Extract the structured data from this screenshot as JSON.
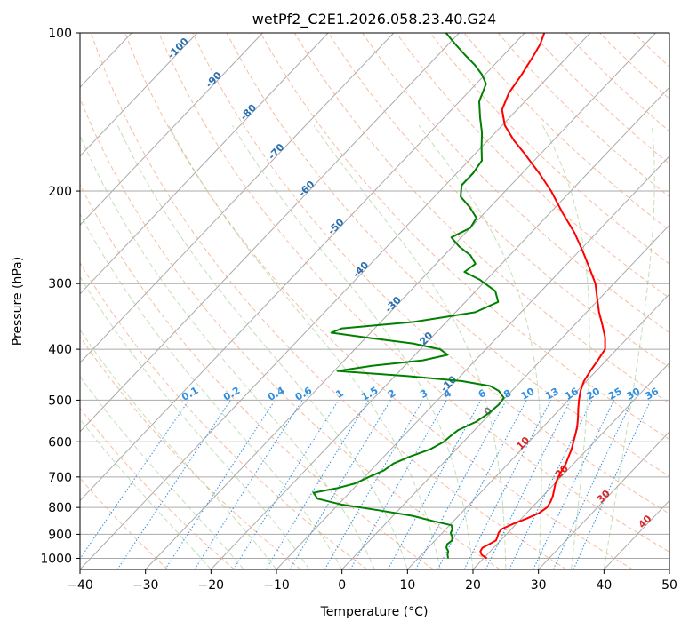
{
  "chart_data": {
    "type": "line",
    "subtype": "skew-T log-P diagram",
    "title": "wetPf2_C2E1.2026.058.23.40.G24",
    "xlabel": "Temperature (°C)",
    "ylabel": "Pressure (hPa)",
    "xlim": [
      -40,
      50
    ],
    "ylim": [
      1050,
      100
    ],
    "y_scale": "log",
    "x_ticks": [
      -40,
      -30,
      -20,
      -10,
      0,
      10,
      20,
      30,
      40,
      50
    ],
    "y_ticks": [
      100,
      200,
      300,
      400,
      500,
      600,
      700,
      800,
      900,
      1000
    ],
    "grid": true,
    "series": [
      {
        "color": "#ff0000",
        "points": [
          [
            1000,
            20.5
          ],
          [
            985,
            19.2
          ],
          [
            970,
            18.5
          ],
          [
            955,
            18.3
          ],
          [
            940,
            18.8
          ],
          [
            925,
            19.3
          ],
          [
            910,
            19.0
          ],
          [
            895,
            18.6
          ],
          [
            880,
            18.5
          ],
          [
            860,
            19.5
          ],
          [
            840,
            20.8
          ],
          [
            820,
            21.9
          ],
          [
            800,
            22.3
          ],
          [
            780,
            22.0
          ],
          [
            760,
            21.5
          ],
          [
            740,
            20.8
          ],
          [
            720,
            20.1
          ],
          [
            700,
            19.6
          ],
          [
            680,
            19.2
          ],
          [
            660,
            18.8
          ],
          [
            640,
            18.2
          ],
          [
            620,
            17.6
          ],
          [
            600,
            16.8
          ],
          [
            580,
            16.0
          ],
          [
            560,
            15.1
          ],
          [
            540,
            14.0
          ],
          [
            520,
            12.8
          ],
          [
            500,
            11.6
          ],
          [
            480,
            10.5
          ],
          [
            460,
            9.6
          ],
          [
            440,
            9.1
          ],
          [
            420,
            8.7
          ],
          [
            400,
            8.2
          ],
          [
            380,
            6.5
          ],
          [
            360,
            4.3
          ],
          [
            340,
            1.9
          ],
          [
            320,
            -0.4
          ],
          [
            300,
            -2.8
          ],
          [
            280,
            -6.0
          ],
          [
            260,
            -9.5
          ],
          [
            240,
            -13.4
          ],
          [
            220,
            -18.1
          ],
          [
            200,
            -23.0
          ],
          [
            185,
            -27.4
          ],
          [
            170,
            -32.4
          ],
          [
            160,
            -36.1
          ],
          [
            150,
            -39.6
          ],
          [
            140,
            -42.3
          ],
          [
            130,
            -43.7
          ],
          [
            120,
            -44.4
          ],
          [
            110,
            -45.4
          ],
          [
            105,
            -46.0
          ],
          [
            100,
            -47.0
          ]
        ]
      },
      {
        "color": "#008000",
        "points": [
          [
            1000,
            14.6
          ],
          [
            985,
            14.0
          ],
          [
            970,
            13.6
          ],
          [
            955,
            12.8
          ],
          [
            940,
            12.4
          ],
          [
            925,
            12.6
          ],
          [
            910,
            12.1
          ],
          [
            895,
            11.3
          ],
          [
            880,
            11.0
          ],
          [
            865,
            10.3
          ],
          [
            850,
            7.0
          ],
          [
            830,
            3.0
          ],
          [
            810,
            -3.0
          ],
          [
            790,
            -9.5
          ],
          [
            770,
            -14.0
          ],
          [
            750,
            -15.5
          ],
          [
            735,
            -12.5
          ],
          [
            720,
            -10.5
          ],
          [
            700,
            -9.3
          ],
          [
            680,
            -8.0
          ],
          [
            660,
            -7.5
          ],
          [
            640,
            -6.0
          ],
          [
            620,
            -4.0
          ],
          [
            600,
            -3.0
          ],
          [
            585,
            -2.8
          ],
          [
            570,
            -2.5
          ],
          [
            550,
            -1.0
          ],
          [
            530,
            -0.3
          ],
          [
            510,
            0.0
          ],
          [
            495,
            -0.2
          ],
          [
            480,
            -2.0
          ],
          [
            470,
            -4.0
          ],
          [
            460,
            -9.0
          ],
          [
            450,
            -18.0
          ],
          [
            440,
            -29.5
          ],
          [
            430,
            -25.0
          ],
          [
            420,
            -18.0
          ],
          [
            410,
            -15.0
          ],
          [
            400,
            -17.0
          ],
          [
            390,
            -22.0
          ],
          [
            380,
            -30.0
          ],
          [
            372,
            -36.0
          ],
          [
            365,
            -35.0
          ],
          [
            355,
            -25.0
          ],
          [
            340,
            -17.0
          ],
          [
            325,
            -15.0
          ],
          [
            310,
            -17.0
          ],
          [
            295,
            -21.0
          ],
          [
            285,
            -24.5
          ],
          [
            275,
            -24.0
          ],
          [
            265,
            -26.0
          ],
          [
            255,
            -29.0
          ],
          [
            245,
            -31.5
          ],
          [
            235,
            -30.0
          ],
          [
            225,
            -30.5
          ],
          [
            215,
            -33.0
          ],
          [
            205,
            -36.0
          ],
          [
            195,
            -37.5
          ],
          [
            185,
            -37.5
          ],
          [
            175,
            -38.0
          ],
          [
            165,
            -40.0
          ],
          [
            155,
            -42.0
          ],
          [
            145,
            -44.5
          ],
          [
            135,
            -47.0
          ],
          [
            125,
            -48.5
          ],
          [
            120,
            -50.5
          ],
          [
            115,
            -53.0
          ],
          [
            110,
            -56.0
          ],
          [
            105,
            -59.0
          ],
          [
            100,
            -62.0
          ]
        ]
      }
    ],
    "dry_adiabat_labels": [
      "-100",
      "-90",
      "-80",
      "-70",
      "-60",
      "-50",
      "-40",
      "-30",
      "-20",
      "-10"
    ],
    "mixing_ratio_labels": [
      "0.1",
      "0.2",
      "0.4",
      "0.6",
      "1",
      "1.5",
      "2",
      "3",
      "4",
      "6",
      "8",
      "10",
      "13",
      "16",
      "20",
      "25",
      "30",
      "36"
    ],
    "moist_adiabat_labels": [
      "0",
      "10",
      "20",
      "30",
      "40"
    ]
  }
}
